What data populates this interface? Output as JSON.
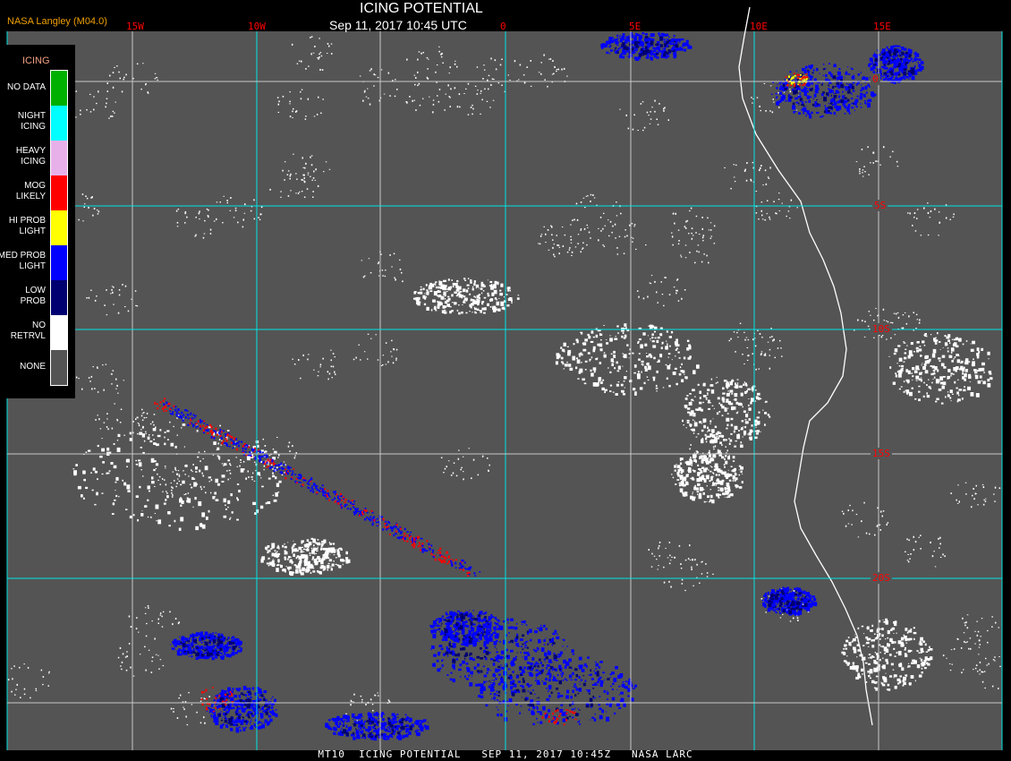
{
  "header": {
    "title": "ICING POTENTIAL",
    "datetime": "Sep 11, 2017 10:45 UTC",
    "brand": "NASA Langley (M04.0)"
  },
  "map": {
    "longitude_labels": [
      "15W",
      "10W",
      "5W",
      "0",
      "5E",
      "10E",
      "15E"
    ],
    "latitude_labels": [
      "0",
      "5S",
      "10S",
      "15S",
      "20S"
    ],
    "colors": {
      "background": "#545454",
      "grid_primary": "#00e5e5",
      "grid_secondary": "#c8c8c8",
      "coast": "#ffffff",
      "label": "#ff0000"
    }
  },
  "legend": {
    "title": "ICING",
    "items": [
      {
        "label": "NO DATA",
        "color": "#00b000"
      },
      {
        "label": "NIGHT\nICING",
        "color": "#00ffff"
      },
      {
        "label": "HEAVY\nICING",
        "color": "#e8b0e8"
      },
      {
        "label": "MOG\nLIKELY",
        "color": "#ff0000"
      },
      {
        "label": "HI PROB\nLIGHT",
        "color": "#ffff00"
      },
      {
        "label": "MED PROB\nLIGHT",
        "color": "#0000ff"
      },
      {
        "label": "LOW\nPROB",
        "color": "#000070"
      },
      {
        "label": "NO\nRETRVL",
        "color": "#ffffff"
      },
      {
        "label": "NONE",
        "color": "#545454"
      }
    ]
  },
  "footer": {
    "caption": "MT10  ICING POTENTIAL   SEP 11, 2017 10:45Z   NASA LARC"
  }
}
